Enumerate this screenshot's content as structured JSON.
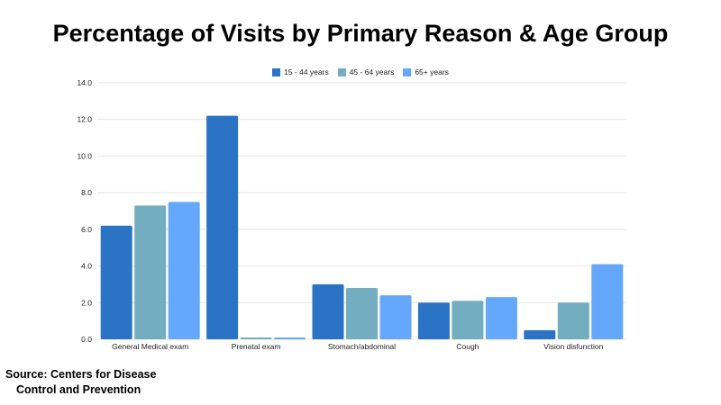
{
  "colors": {
    "s0": "#2a73c5",
    "s1": "#73adc0",
    "s2": "#64a7fb",
    "grid": "#e4e4e4"
  },
  "chart_data": {
    "type": "bar",
    "title": "Percentage of Visits by Primary Reason & Age Group",
    "categories": [
      "General Medical exam",
      "Prenatal exam",
      "Stomach/abdominal",
      "Cough",
      "Vision disfunction"
    ],
    "series": [
      {
        "name": "15 - 44 years",
        "values": [
          6.2,
          12.2,
          3.0,
          2.0,
          0.5
        ]
      },
      {
        "name": "45 - 64 years",
        "values": [
          7.3,
          0.1,
          2.8,
          2.1,
          2.0
        ]
      },
      {
        "name": "65+ years",
        "values": [
          7.5,
          0.1,
          2.4,
          2.3,
          4.1
        ]
      }
    ],
    "ylim": [
      0,
      14
    ],
    "yticks": [
      "0.0",
      "2.0",
      "4.0",
      "6.0",
      "8.0",
      "10.0",
      "12.0",
      "14.0"
    ],
    "grid": true,
    "legend": "top-center"
  },
  "source": {
    "line1": "Source: Centers for Disease",
    "line2": "Control and Prevention"
  }
}
